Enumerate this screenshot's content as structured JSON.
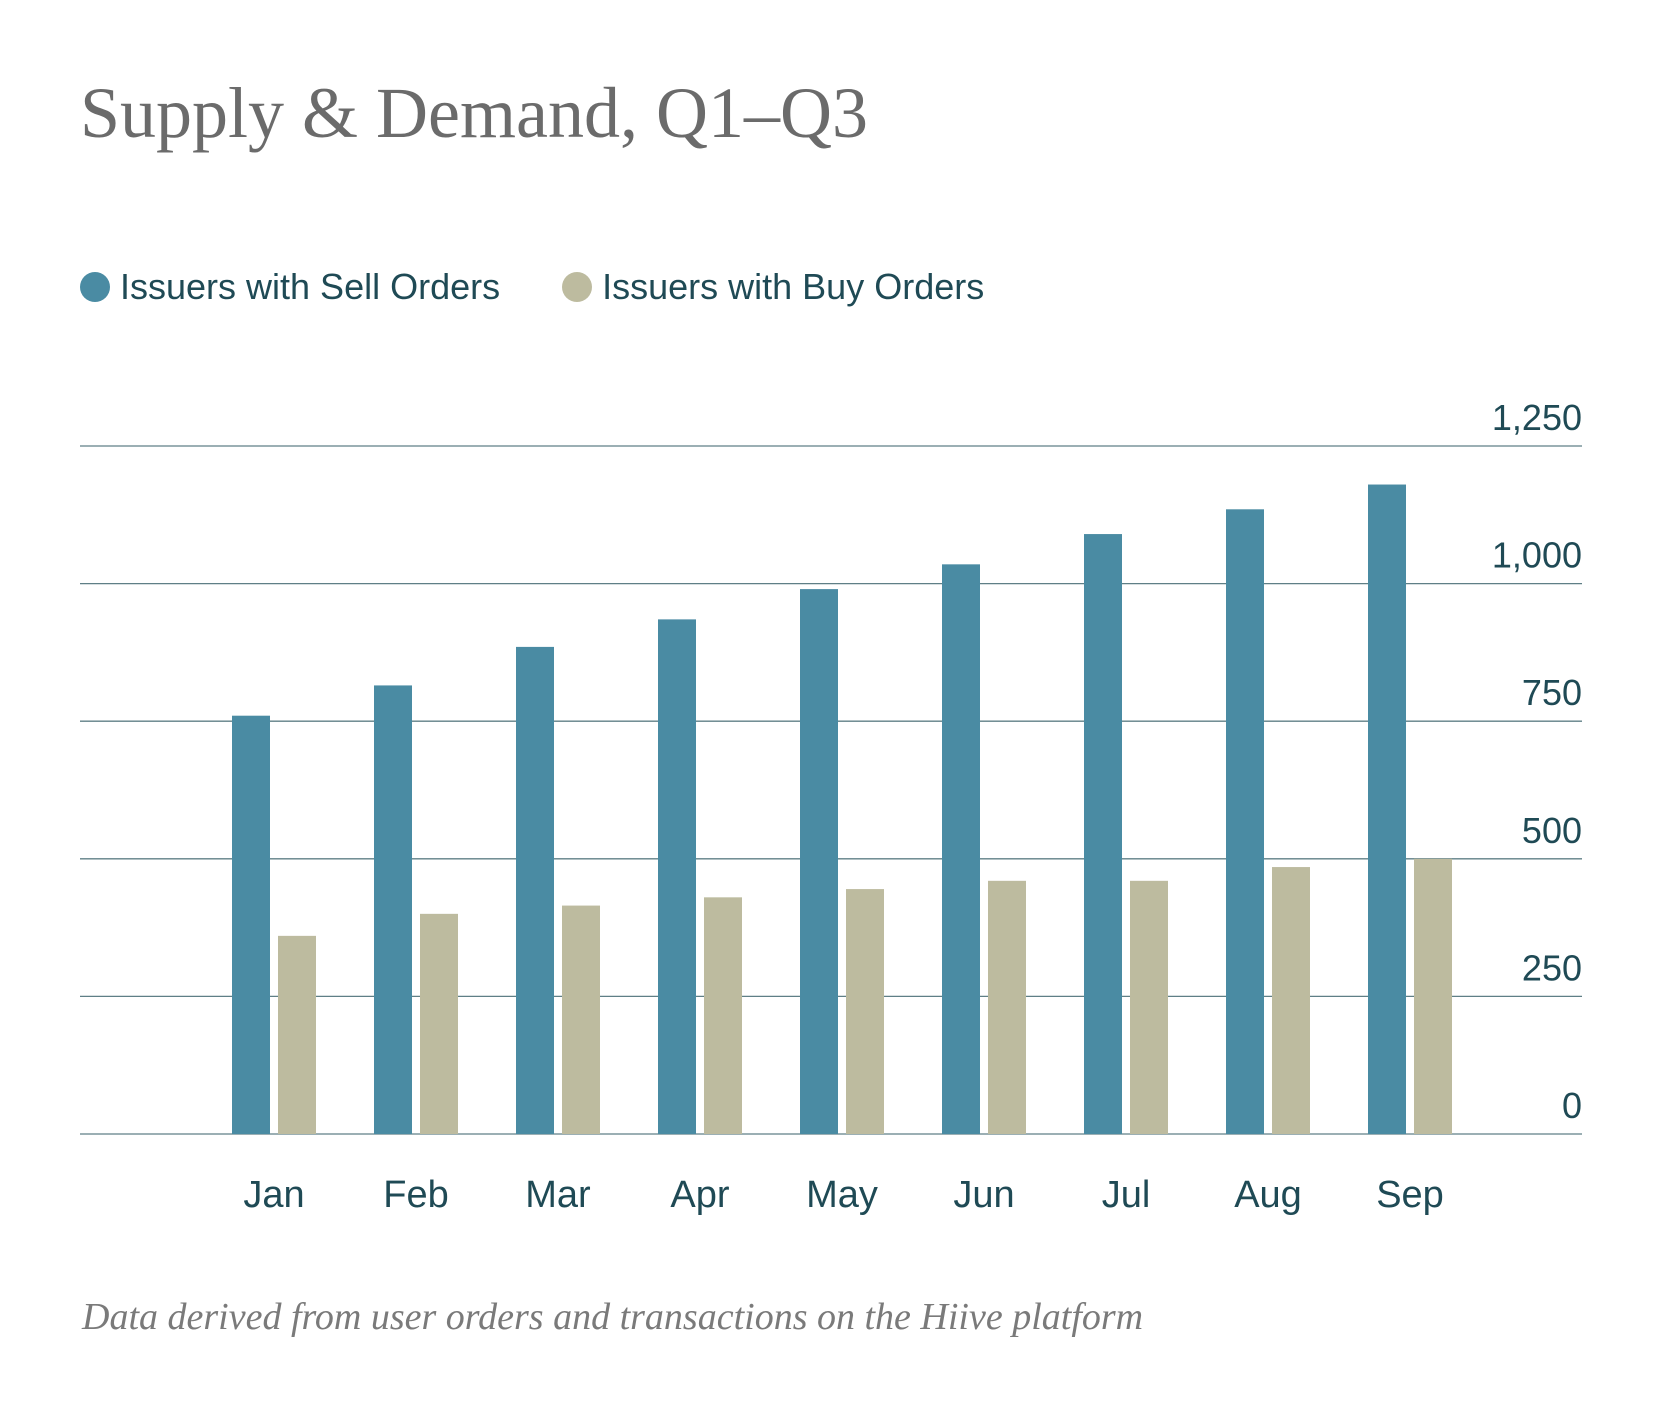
{
  "colors": {
    "sell": "#4a8ba3",
    "buy": "#bdbb9f",
    "gridline": "#5f7f86",
    "tick_text": "#1f4a55",
    "title_text": "#6b6b6b"
  },
  "chart_data": {
    "type": "bar",
    "title": "Supply & Demand, Q1–Q3",
    "xlabel": "",
    "ylabel": "",
    "categories": [
      "Jan",
      "Feb",
      "Mar",
      "Apr",
      "May",
      "Jun",
      "Jul",
      "Aug",
      "Sep"
    ],
    "series": [
      {
        "name": "Issuers with Sell Orders",
        "color": "#4a8ba3",
        "values": [
          760,
          815,
          885,
          935,
          990,
          1035,
          1090,
          1135,
          1180
        ]
      },
      {
        "name": "Issuers with Buy Orders",
        "color": "#bdbb9f",
        "values": [
          360,
          400,
          415,
          430,
          445,
          460,
          460,
          485,
          500
        ]
      }
    ],
    "ylim": [
      0,
      1250
    ],
    "yticks": [
      0,
      250,
      500,
      750,
      1000,
      1250
    ],
    "ytick_labels": [
      "0",
      "250",
      "500",
      "750",
      "1,000",
      "1,250"
    ],
    "grid": true,
    "legend_position": "top-left",
    "y_axis_side": "right"
  },
  "footnote": "Data derived from user orders and transactions on the Hiive platform"
}
